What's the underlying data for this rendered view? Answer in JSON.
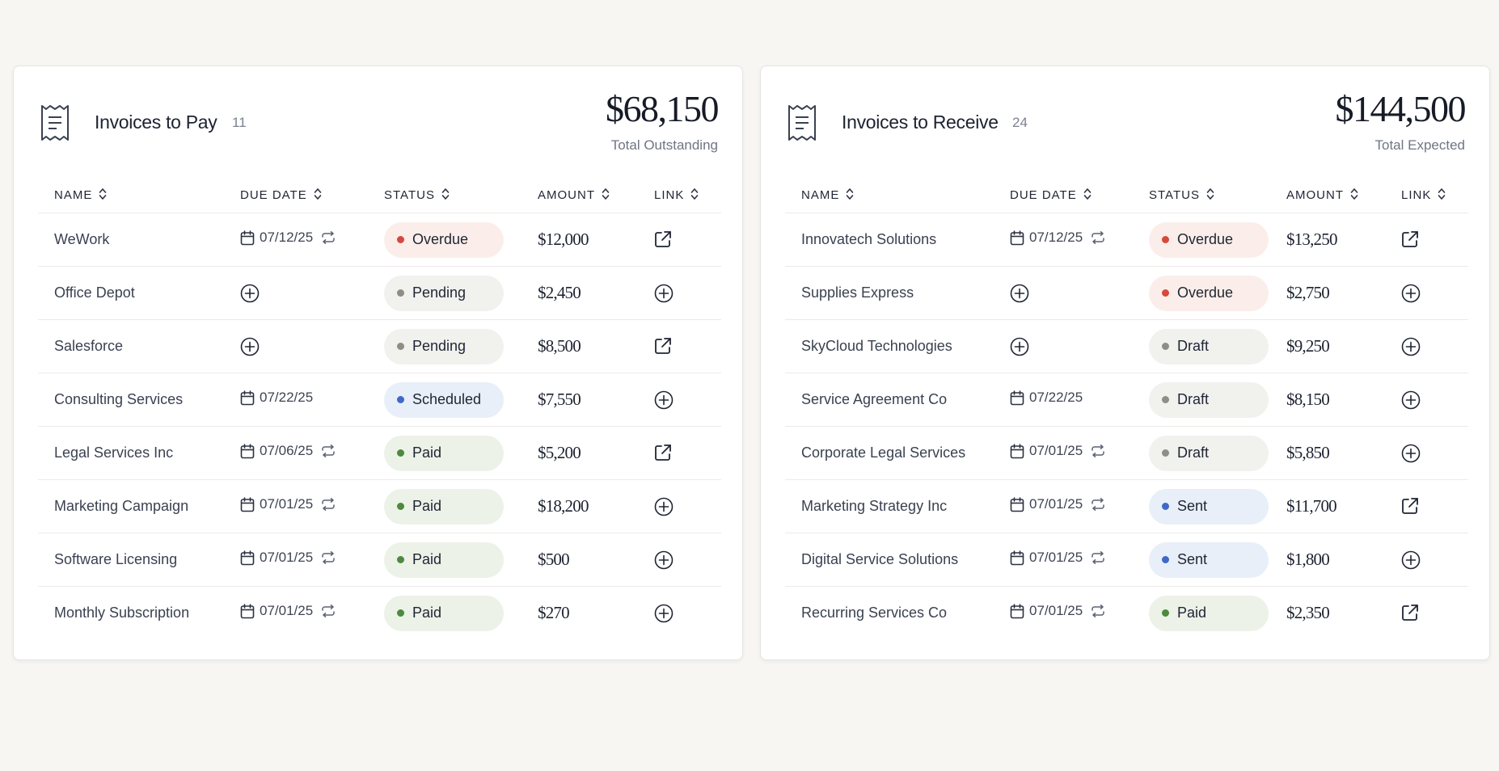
{
  "colors": {
    "overdue_bg": "#fbeeea",
    "overdue_dot": "#d9473b",
    "pending_bg": "#f1f1ee",
    "pending_dot": "#8e8e86",
    "draft_bg": "#f1f1ee",
    "draft_dot": "#8e8e86",
    "scheduled_bg": "#e9eff8",
    "scheduled_dot": "#3e69c9",
    "sent_bg": "#e9eff8",
    "sent_dot": "#3e69c9",
    "paid_bg": "#ecf2e8",
    "paid_dot": "#4c8a3e"
  },
  "pay": {
    "title": "Invoices to Pay",
    "count": "11",
    "total": "$68,150",
    "total_label": "Total Outstanding",
    "columns": [
      "NAME",
      "DUE DATE",
      "STATUS",
      "AMOUNT",
      "LINK"
    ],
    "rows": [
      {
        "name": "WeWork",
        "due": "07/12/25",
        "recurring": true,
        "status": "Overdue",
        "status_key": "overdue",
        "amount": "$12,000",
        "link": "external-link-icon"
      },
      {
        "name": "Office Depot",
        "due": "",
        "recurring": false,
        "status": "Pending",
        "status_key": "pending",
        "amount": "$2,450",
        "link": "add-icon"
      },
      {
        "name": "Salesforce",
        "due": "",
        "recurring": false,
        "status": "Pending",
        "status_key": "pending",
        "amount": "$8,500",
        "link": "external-link-icon"
      },
      {
        "name": "Consulting Services",
        "due": "07/22/25",
        "recurring": false,
        "status": "Scheduled",
        "status_key": "scheduled",
        "amount": "$7,550",
        "link": "add-icon"
      },
      {
        "name": "Legal Services Inc",
        "due": "07/06/25",
        "recurring": true,
        "status": "Paid",
        "status_key": "paid",
        "amount": "$5,200",
        "link": "external-link-icon"
      },
      {
        "name": "Marketing Campaign",
        "due": "07/01/25",
        "recurring": true,
        "status": "Paid",
        "status_key": "paid",
        "amount": "$18,200",
        "link": "add-icon"
      },
      {
        "name": "Software Licensing",
        "due": "07/01/25",
        "recurring": true,
        "status": "Paid",
        "status_key": "paid",
        "amount": "$500",
        "link": "add-icon"
      },
      {
        "name": "Monthly Subscription",
        "due": "07/01/25",
        "recurring": true,
        "status": "Paid",
        "status_key": "paid",
        "amount": "$270",
        "link": "add-icon"
      }
    ]
  },
  "receive": {
    "title": "Invoices to Receive",
    "count": "24",
    "total": "$144,500",
    "total_label": "Total Expected",
    "columns": [
      "NAME",
      "DUE DATE",
      "STATUS",
      "AMOUNT",
      "LINK"
    ],
    "rows": [
      {
        "name": "Innovatech Solutions",
        "due": "07/12/25",
        "recurring": true,
        "status": "Overdue",
        "status_key": "overdue",
        "amount": "$13,250",
        "link": "external-link-icon"
      },
      {
        "name": "Supplies Express",
        "due": "",
        "recurring": false,
        "status": "Overdue",
        "status_key": "overdue",
        "amount": "$2,750",
        "link": "add-icon"
      },
      {
        "name": "SkyCloud Technologies",
        "due": "",
        "recurring": false,
        "status": "Draft",
        "status_key": "draft",
        "amount": "$9,250",
        "link": "add-icon"
      },
      {
        "name": "Service Agreement Co",
        "due": "07/22/25",
        "recurring": false,
        "status": "Draft",
        "status_key": "draft",
        "amount": "$8,150",
        "link": "add-icon"
      },
      {
        "name": "Corporate Legal Services",
        "due": "07/01/25",
        "recurring": true,
        "status": "Draft",
        "status_key": "draft",
        "amount": "$5,850",
        "link": "add-icon"
      },
      {
        "name": "Marketing Strategy Inc",
        "due": "07/01/25",
        "recurring": true,
        "status": "Sent",
        "status_key": "sent",
        "amount": "$11,700",
        "link": "external-link-icon"
      },
      {
        "name": "Digital Service Solutions",
        "due": "07/01/25",
        "recurring": true,
        "status": "Sent",
        "status_key": "sent",
        "amount": "$1,800",
        "link": "add-icon"
      },
      {
        "name": "Recurring Services Co",
        "due": "07/01/25",
        "recurring": true,
        "status": "Paid",
        "status_key": "paid",
        "amount": "$2,350",
        "link": "external-link-icon"
      }
    ]
  }
}
